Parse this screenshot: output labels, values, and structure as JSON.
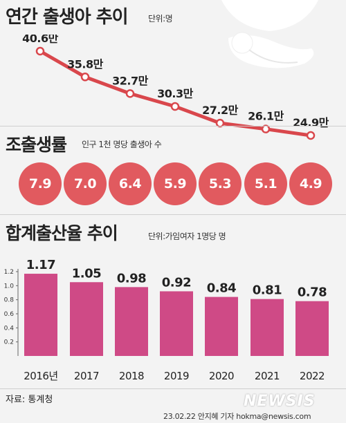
{
  "header": {
    "title": "연간 출생아 추이",
    "unit": "단위:명"
  },
  "birth_section": {
    "labels": [
      "40.6만",
      "35.8만",
      "32.7만",
      "30.3만",
      "27.2만",
      "26.1만",
      "24.9만"
    ]
  },
  "crude_rate": {
    "title": "조출생률",
    "note": "인구 1천 명당 출생아 수",
    "values": [
      "7.9",
      "7.0",
      "6.4",
      "5.9",
      "5.3",
      "5.1",
      "4.9"
    ]
  },
  "tfr": {
    "title": "합계출산율 추이",
    "unit": "단위:가임여자 1명당 명"
  },
  "footer": {
    "source": "자료: 통계청",
    "credit": "23.02.22 안지혜 기자 hokma@newsis.com",
    "logo": "NEWSIS"
  },
  "colors": {
    "line": "#d9474c",
    "circle": "#e15a5f",
    "bar": "#cf4a86"
  },
  "chart_data": [
    {
      "type": "line",
      "title": "연간 출생아 추이",
      "x": [
        "2016",
        "2017",
        "2018",
        "2019",
        "2020",
        "2021",
        "2022"
      ],
      "series": [
        {
          "values": [
            40.6,
            35.8,
            32.7,
            30.3,
            27.2,
            26.1,
            24.9
          ]
        }
      ]
    },
    {
      "type": "table",
      "title": "조출생률",
      "x": [
        "2016",
        "2017",
        "2018",
        "2019",
        "2020",
        "2021",
        "2022"
      ],
      "values": [
        7.9,
        7.0,
        6.4,
        5.9,
        5.3,
        5.1,
        4.9
      ]
    },
    {
      "type": "bar",
      "title": "합계출산율 추이",
      "categories": [
        "2016년",
        "2017",
        "2018",
        "2019",
        "2020",
        "2021",
        "2022"
      ],
      "values": [
        1.17,
        1.05,
        0.98,
        0.92,
        0.84,
        0.81,
        0.78
      ],
      "ylim": [
        0,
        1.2
      ],
      "yticks": [
        "0.2",
        "0.4",
        "0.6",
        "0.8",
        "1.0",
        "1.2"
      ],
      "grid": false
    }
  ]
}
